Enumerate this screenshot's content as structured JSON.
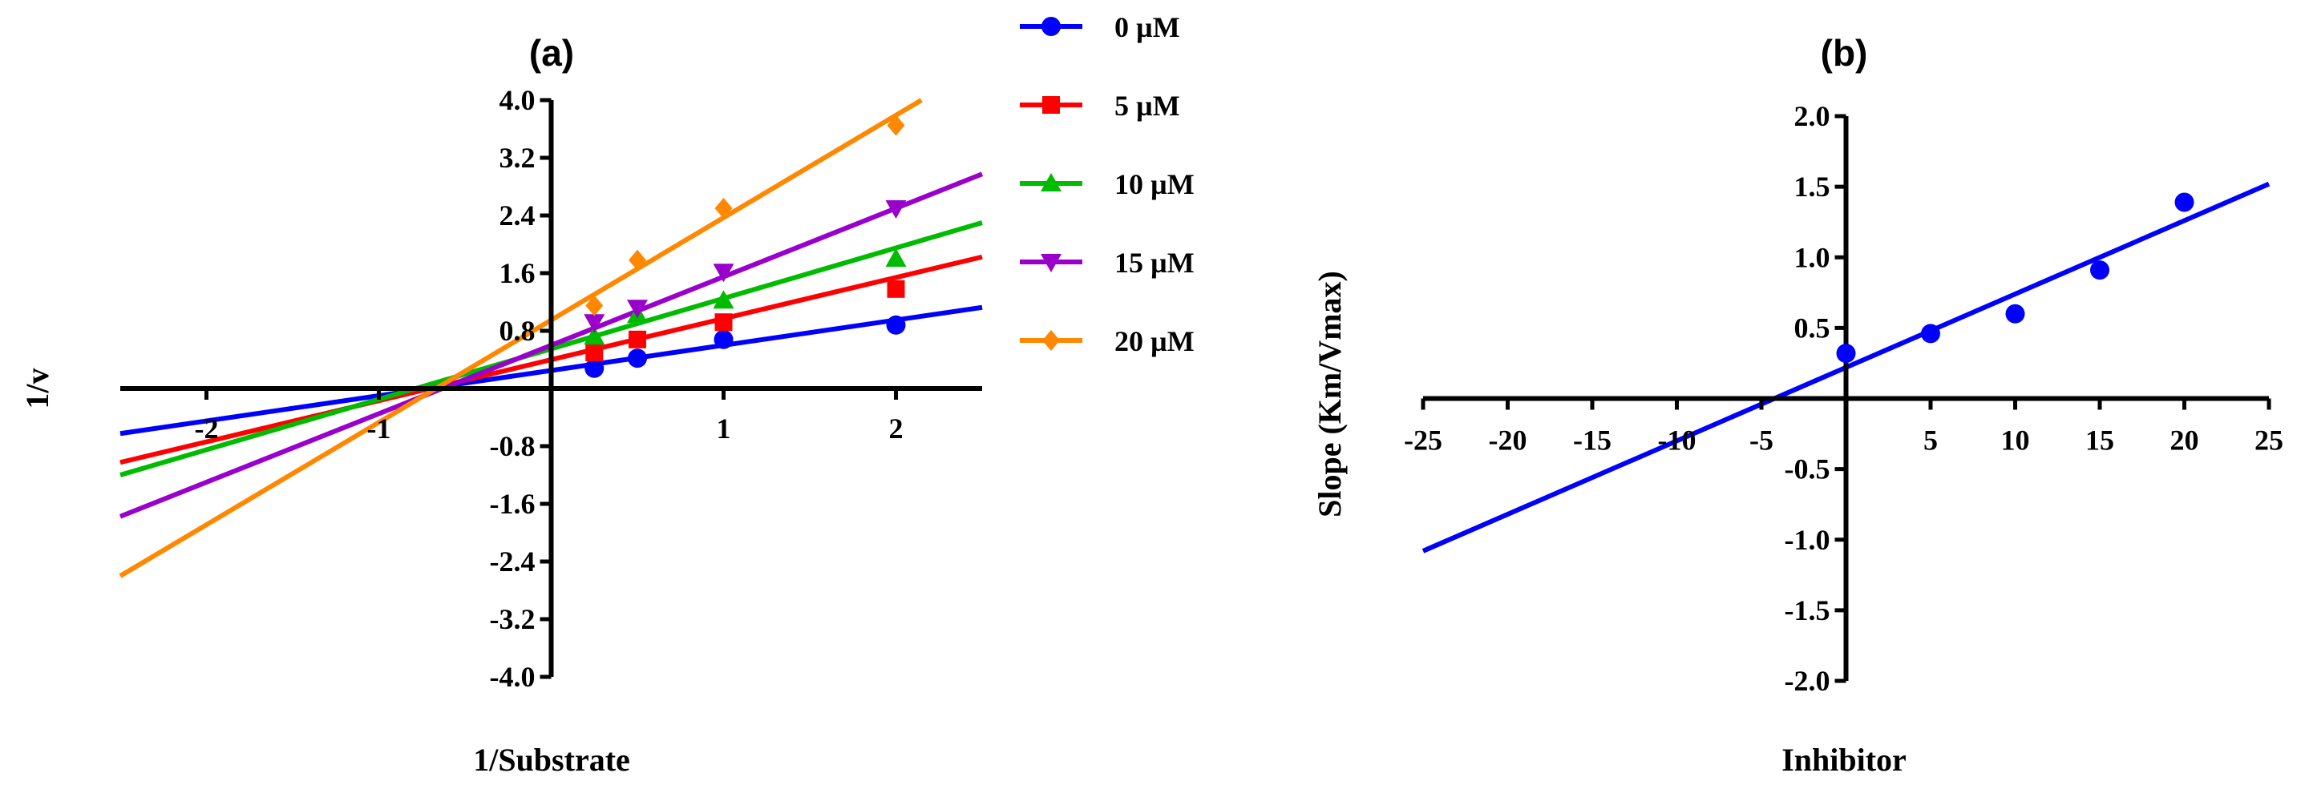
{
  "chart_data": [
    {
      "type": "line",
      "panel_label": "(a)",
      "title": "",
      "xlabel": "1/Substrate",
      "ylabel": "1/v",
      "xlim": [
        -2.5,
        2.5
      ],
      "ylim": [
        -4.0,
        4.0
      ],
      "x_ticks": [
        -2,
        -1,
        1,
        2
      ],
      "x_tick_labels": [
        "-2",
        "-1",
        "1",
        "2"
      ],
      "y_ticks": [
        -4.0,
        -3.2,
        -2.4,
        -1.6,
        -0.8,
        0.8,
        1.6,
        2.4,
        3.2,
        4.0
      ],
      "y_tick_labels": [
        "-4.0",
        "-3.2",
        "-2.4",
        "-1.6",
        "-0.8",
        "0.8",
        "1.6",
        "2.4",
        "3.2",
        "4.0"
      ],
      "grid": false,
      "legend_position": "right",
      "series": [
        {
          "name": "0 µM",
          "color": "#0000ff",
          "marker": "circle",
          "x": [
            0.25,
            0.5,
            1,
            2
          ],
          "y": [
            0.28,
            0.42,
            0.68,
            0.88
          ],
          "fit": {
            "slope": 0.35,
            "intercept": 0.25
          }
        },
        {
          "name": "5 µM",
          "color": "#ff0000",
          "marker": "square",
          "x": [
            0.25,
            0.5,
            1,
            2
          ],
          "y": [
            0.5,
            0.68,
            0.92,
            1.38
          ],
          "fit": {
            "slope": 0.57,
            "intercept": 0.4
          }
        },
        {
          "name": "10 µM",
          "color": "#00bb00",
          "marker": "triangle-up",
          "x": [
            0.25,
            0.5,
            1,
            2
          ],
          "y": [
            0.72,
            1.02,
            1.22,
            1.8
          ],
          "fit": {
            "slope": 0.7,
            "intercept": 0.55
          }
        },
        {
          "name": "15 µM",
          "color": "#9900cc",
          "marker": "triangle-down",
          "x": [
            0.25,
            0.5,
            1,
            2
          ],
          "y": [
            0.92,
            1.12,
            1.62,
            2.5
          ],
          "fit": {
            "slope": 0.95,
            "intercept": 0.6
          }
        },
        {
          "name": "20 µM",
          "color": "#ff8800",
          "marker": "diamond",
          "x": [
            0.25,
            0.5,
            1,
            2
          ],
          "y": [
            1.15,
            1.78,
            2.5,
            3.65
          ],
          "fit": {
            "slope": 1.42,
            "intercept": 0.95
          }
        }
      ]
    },
    {
      "type": "scatter",
      "panel_label": "(b)",
      "title": "",
      "xlabel": "Inhibitor",
      "ylabel": "Slope (Km/Vmax)",
      "xlim": [
        -25,
        25
      ],
      "ylim": [
        -2.0,
        2.0
      ],
      "x_ticks": [
        -25,
        -20,
        -15,
        -10,
        -5,
        5,
        10,
        15,
        20,
        25
      ],
      "x_tick_labels": [
        "-25",
        "-20",
        "-15",
        "-10",
        "-5",
        "5",
        "10",
        "15",
        "20",
        "25"
      ],
      "y_ticks": [
        -2.0,
        -1.5,
        -1.0,
        -0.5,
        0.5,
        1.0,
        1.5,
        2.0
      ],
      "y_tick_labels": [
        "-2.0",
        "-1.5",
        "-1.0",
        "-0.5",
        "0.5",
        "1.0",
        "1.5",
        "2.0"
      ],
      "grid": false,
      "series": [
        {
          "color": "#0000ff",
          "marker": "circle",
          "x": [
            0,
            5,
            10,
            15,
            20
          ],
          "y": [
            0.32,
            0.46,
            0.6,
            0.91,
            1.39
          ],
          "fit": {
            "slope": 0.052,
            "intercept": 0.22
          }
        }
      ]
    }
  ]
}
